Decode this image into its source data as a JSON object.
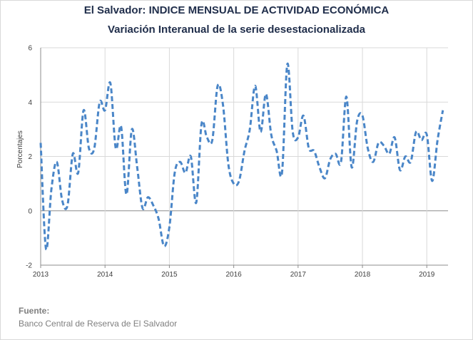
{
  "chart_data": {
    "type": "line",
    "title": "El Salvador: INDICE MENSUAL DE ACTIVIDAD ECONÓMICA",
    "subtitle": "Variación Interanual de la serie desestacionalizada",
    "xlabel": "",
    "ylabel": "Porcentajes",
    "ylim": [
      -2,
      6
    ],
    "yticks": [
      "-2",
      "0",
      "2",
      "4",
      "6"
    ],
    "xlim": [
      2013,
      2019.33
    ],
    "xticks": [
      "2013",
      "2014",
      "2015",
      "2016",
      "2017",
      "2018",
      "2019"
    ],
    "grid": true,
    "line_color": "#4a86c8",
    "line_style": "dashed",
    "series": [
      {
        "x": [
          2013,
          2013.083,
          2013.167,
          2013.25,
          2013.333,
          2013.417,
          2013.5,
          2013.583,
          2013.667,
          2013.75,
          2013.833,
          2013.917,
          2014,
          2014.083,
          2014.167,
          2014.25,
          2014.333,
          2014.417,
          2014.5,
          2014.583,
          2014.667,
          2014.75,
          2014.833,
          2014.917,
          2015,
          2015.083,
          2015.167,
          2015.25,
          2015.333,
          2015.417,
          2015.5,
          2015.583,
          2015.667,
          2015.75,
          2015.833,
          2015.917,
          2016,
          2016.083,
          2016.167,
          2016.25,
          2016.333,
          2016.417,
          2016.5,
          2016.583,
          2016.667,
          2016.75,
          2016.833,
          2016.917,
          2017,
          2017.083,
          2017.167,
          2017.25,
          2017.333,
          2017.417,
          2017.5,
          2017.583,
          2017.667,
          2017.75,
          2017.833,
          2017.917,
          2018,
          2018.083,
          2018.167,
          2018.25,
          2018.333,
          2018.417,
          2018.5,
          2018.583,
          2018.667,
          2018.75,
          2018.833,
          2018.917,
          2019,
          2019.083,
          2019.167,
          2019.25
        ],
        "values": [
          2.5,
          -1.4,
          0.8,
          1.8,
          0.4,
          0.2,
          2.1,
          1.4,
          3.7,
          2.3,
          2.3,
          4.0,
          3.7,
          4.7,
          2.3,
          3.1,
          0.6,
          3.0,
          1.6,
          0.1,
          0.5,
          0.2,
          -0.3,
          -1.3,
          -0.6,
          1.4,
          1.8,
          1.4,
          2.0,
          0.3,
          3.2,
          2.7,
          2.6,
          4.6,
          3.9,
          1.7,
          1.0,
          1.1,
          2.2,
          3.0,
          4.6,
          2.9,
          4.3,
          2.8,
          2.2,
          1.4,
          5.4,
          2.9,
          2.7,
          3.5,
          2.3,
          2.2,
          1.6,
          1.2,
          1.9,
          2.1,
          1.8,
          4.2,
          1.6,
          3.3,
          3.5,
          2.3,
          1.8,
          2.5,
          2.4,
          2.1,
          2.7,
          1.5,
          2.0,
          1.8,
          2.9,
          2.6,
          2.8,
          1.1,
          2.6,
          3.7
        ]
      }
    ]
  },
  "source": {
    "heading": "Fuente:",
    "text": "Banco Central de Reserva de El Salvador"
  }
}
